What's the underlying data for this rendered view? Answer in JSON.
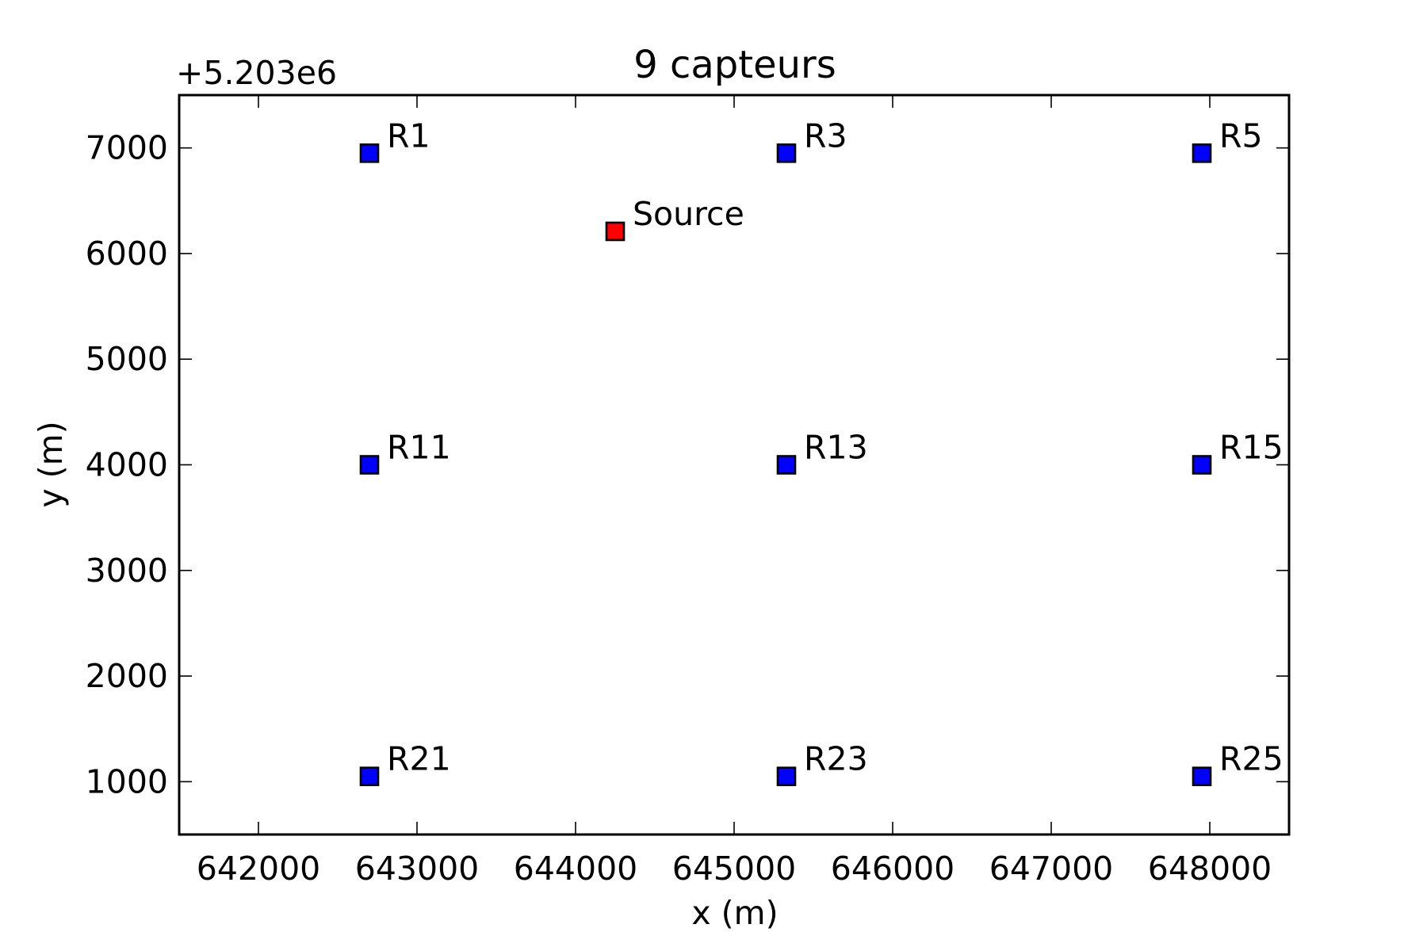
{
  "chart_data": {
    "type": "scatter",
    "title": "9 capteurs",
    "xlabel": "x (m)",
    "ylabel": "y (m)",
    "y_offset_label": "+5.203e6",
    "y_offset": 5203000,
    "xlim": [
      641500,
      648500
    ],
    "ylim": [
      500,
      7500
    ],
    "xticks": [
      642000,
      643000,
      644000,
      645000,
      646000,
      647000,
      648000
    ],
    "xtick_labels": [
      "642000",
      "643000",
      "644000",
      "645000",
      "646000",
      "647000",
      "648000"
    ],
    "yticks": [
      1000,
      2000,
      3000,
      4000,
      5000,
      6000,
      7000
    ],
    "ytick_labels": [
      "1000",
      "2000",
      "3000",
      "4000",
      "5000",
      "6000",
      "7000"
    ],
    "grid": false,
    "legend": "none",
    "series": [
      {
        "color": "#0000ff",
        "marker": "square",
        "points": [
          {
            "label": "R1",
            "x": 642700,
            "y": 6950
          },
          {
            "label": "R3",
            "x": 645330,
            "y": 6950
          },
          {
            "label": "R5",
            "x": 647950,
            "y": 6950
          },
          {
            "label": "R11",
            "x": 642700,
            "y": 4000
          },
          {
            "label": "R13",
            "x": 645330,
            "y": 4000
          },
          {
            "label": "R15",
            "x": 647950,
            "y": 4000
          },
          {
            "label": "R21",
            "x": 642700,
            "y": 1050
          },
          {
            "label": "R23",
            "x": 645330,
            "y": 1050
          },
          {
            "label": "R25",
            "x": 647950,
            "y": 1050
          }
        ]
      },
      {
        "color": "#ff0000",
        "marker": "square",
        "points": [
          {
            "label": "Source",
            "x": 644250,
            "y": 6210
          }
        ]
      }
    ]
  }
}
